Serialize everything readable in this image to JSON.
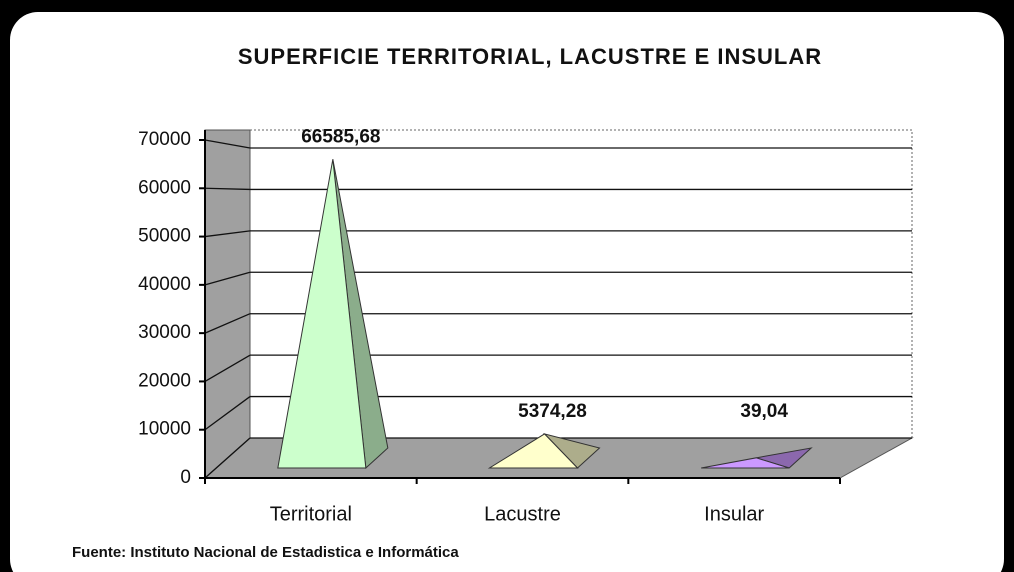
{
  "chart_data": {
    "type": "pyramid3d",
    "title": "SUPERFICIE TERRITORIAL,  LACUSTRE E INSULAR",
    "categories": [
      "Territorial",
      "Lacustre",
      "Insular"
    ],
    "values": [
      66585.68,
      5374.28,
      39.04
    ],
    "value_labels": [
      "66585,68",
      "5374,28",
      "39,04"
    ],
    "colors": [
      "#ccffcc",
      "#ffffcc",
      "#cc99ff"
    ],
    "ylim": [
      0,
      70000
    ],
    "yticks": [
      0,
      10000,
      20000,
      30000,
      40000,
      50000,
      60000,
      70000
    ],
    "grid": true,
    "source": "Fuente: Instituto Nacional de Estadistica e Informática"
  }
}
